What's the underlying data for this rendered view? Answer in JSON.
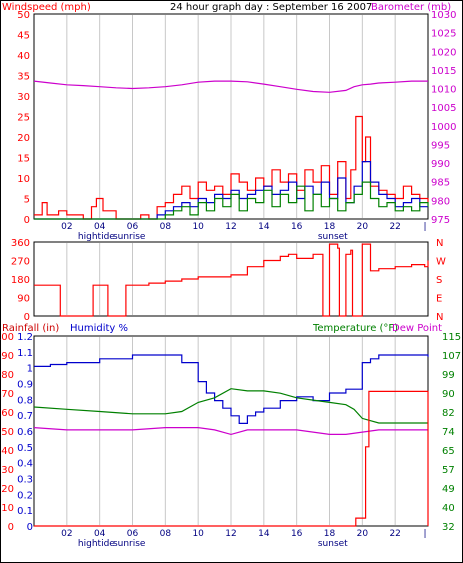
{
  "top_title": "24 hour graph day : September 16 2007",
  "colors": {
    "red": "#ff0000",
    "magenta": "#cc00cc",
    "blue": "#0000cc",
    "green": "#008000",
    "grid": "#c8c8c8",
    "axis": "#000000"
  },
  "x_ticks": [
    "02",
    "04",
    "06",
    "08",
    "10",
    "12",
    "14",
    "16",
    "18",
    "20",
    "22",
    "|"
  ],
  "x_events_top": [
    {
      "text": "hightide",
      "hour": 3.8
    },
    {
      "text": "sunrise",
      "hour": 5.8
    },
    {
      "text": "sunset",
      "hour": 18.2
    }
  ],
  "x_events_bottom": [
    {
      "text": "hightide",
      "hour": 3.8
    },
    {
      "text": "sunrise",
      "hour": 5.8
    },
    {
      "text": "sunset",
      "hour": 18.2
    }
  ],
  "chart_data": [
    {
      "type": "line",
      "title": "24 hour graph day : September 16 2007",
      "left_label": "Windspeed (mph)",
      "right_label": "Barometer (mb)",
      "left_ticks": [
        "50",
        "45",
        "40",
        "35",
        "30",
        "25",
        "20",
        "15",
        "10",
        "5",
        "0"
      ],
      "right_ticks": [
        "1030",
        "1025",
        "1020",
        "1015",
        "1010",
        "1005",
        "1000",
        "995",
        "990",
        "985",
        "980",
        "975"
      ],
      "x_range_hours": [
        0,
        24
      ],
      "left_range": [
        0,
        50
      ],
      "right_range": [
        975,
        1030
      ],
      "series": [
        {
          "name": "Barometer",
          "axis": "right",
          "color": "#cc00cc",
          "x": [
            0,
            1,
            2,
            3,
            4,
            5,
            6,
            7,
            8,
            9,
            10,
            11,
            12,
            13,
            14,
            15,
            16,
            17,
            18,
            19,
            19.5,
            20,
            20.5,
            21,
            22,
            23,
            24
          ],
          "y": [
            1012,
            1011.5,
            1011,
            1010.8,
            1010.5,
            1010.2,
            1010,
            1010.2,
            1010.5,
            1011,
            1011.7,
            1012,
            1012,
            1011.8,
            1011.2,
            1010.5,
            1009.8,
            1009.2,
            1009,
            1009.5,
            1010.5,
            1011,
            1011.2,
            1011.5,
            1011.7,
            1012,
            1012
          ]
        },
        {
          "name": "Gust",
          "axis": "left",
          "color": "#ff0000",
          "x": [
            0,
            0.5,
            0.8,
            1.5,
            2,
            3,
            3.5,
            3.8,
            4.2,
            5,
            6,
            6.5,
            7,
            7.5,
            8,
            8.5,
            9,
            9.5,
            10,
            10.5,
            11,
            11.5,
            12,
            12.5,
            13,
            13.5,
            14,
            14.5,
            15,
            15.5,
            16,
            16.5,
            17,
            17.5,
            18,
            18.5,
            19,
            19.3,
            19.6,
            20,
            20.2,
            20.5,
            21,
            21.5,
            22,
            22.5,
            23,
            23.5,
            24
          ],
          "y": [
            1,
            4,
            1,
            2,
            1,
            0,
            3,
            5,
            2,
            0,
            0,
            1,
            0,
            3,
            4,
            6,
            8,
            5,
            9,
            7,
            8,
            6,
            11,
            9,
            7,
            10,
            8,
            12,
            9,
            11,
            7,
            12,
            9,
            13,
            6,
            14,
            5,
            12,
            25,
            14,
            20,
            8,
            7,
            6,
            5,
            8,
            6,
            5,
            4
          ]
        },
        {
          "name": "Wind",
          "axis": "left",
          "color": "#0000cc",
          "x": [
            0,
            1,
            2,
            3,
            4,
            5,
            6,
            7,
            7.5,
            8,
            8.5,
            9,
            9.5,
            10,
            10.5,
            11,
            11.5,
            12,
            12.5,
            13,
            13.5,
            14,
            14.5,
            15,
            15.5,
            16,
            16.5,
            17,
            17.5,
            18,
            18.5,
            19,
            19.5,
            20,
            20.5,
            21,
            21.5,
            22,
            22.5,
            23,
            23.5,
            24
          ],
          "y": [
            0,
            0,
            0,
            0,
            0,
            0,
            0,
            0,
            1,
            2,
            3,
            4,
            3,
            5,
            4,
            6,
            5,
            7,
            5,
            6,
            7,
            8,
            6,
            7,
            9,
            5,
            8,
            6,
            9,
            5,
            10,
            4,
            8,
            14,
            9,
            6,
            5,
            3,
            4,
            5,
            3,
            3
          ]
        },
        {
          "name": "Avg wind",
          "axis": "left",
          "color": "#008000",
          "x": [
            0,
            1,
            2,
            3,
            4,
            5,
            6,
            7,
            7.5,
            8,
            8.5,
            9,
            9.5,
            10,
            10.5,
            11,
            11.5,
            12,
            12.5,
            13,
            13.5,
            14,
            14.5,
            15,
            15.5,
            16,
            16.5,
            17,
            17.5,
            18,
            18.5,
            19,
            19.5,
            20,
            20.5,
            21,
            21.5,
            22,
            22.5,
            23,
            23.5,
            24
          ],
          "y": [
            0,
            0,
            0,
            0,
            0,
            0,
            0,
            0,
            0,
            1,
            2,
            3,
            1,
            4,
            2,
            5,
            3,
            6,
            2,
            5,
            4,
            7,
            3,
            6,
            4,
            8,
            2,
            6,
            3,
            5,
            2,
            4,
            6,
            9,
            5,
            3,
            4,
            2,
            3,
            2,
            4,
            3
          ]
        }
      ]
    },
    {
      "type": "line",
      "title": "",
      "left_ticks": [
        "360",
        "270",
        "180",
        "90",
        "0"
      ],
      "right_ticks": [
        "N",
        "W",
        "S",
        "E",
        "N"
      ],
      "x_range_hours": [
        0,
        24
      ],
      "left_range": [
        0,
        360
      ],
      "series": [
        {
          "name": "Wind direction",
          "axis": "left",
          "color": "#ff0000",
          "x": [
            0,
            1.5,
            1.6,
            3.5,
            3.6,
            4.4,
            4.5,
            5.5,
            5.6,
            6,
            7,
            8,
            9,
            10,
            11,
            12,
            13,
            14,
            15,
            15.5,
            16,
            17,
            17.5,
            17.6,
            18,
            18.5,
            18.6,
            19,
            19.3,
            19.4,
            20,
            20.5,
            21,
            22,
            23,
            23.8,
            24
          ],
          "y": [
            150,
            150,
            0,
            0,
            150,
            150,
            0,
            0,
            150,
            150,
            160,
            170,
            180,
            190,
            190,
            200,
            240,
            270,
            290,
            300,
            280,
            300,
            300,
            0,
            350,
            330,
            0,
            300,
            320,
            0,
            350,
            220,
            230,
            240,
            250,
            240,
            270
          ]
        }
      ]
    },
    {
      "type": "line",
      "title": "",
      "left_label_1": "Rainfall (in)",
      "left_label_2": "Humidity %",
      "right_label_1": "Temperature (°F)",
      "right_label_2": "Dew Point",
      "rain_ticks": [
        "1.2",
        "1.1",
        "1",
        "0.9",
        "0.8",
        "0.7",
        "0.6",
        "0.5",
        "0.4",
        "0.3",
        "0.2",
        "0.1",
        "0"
      ],
      "humidity_ticks": [
        "100",
        "90",
        "80",
        "70",
        "60",
        "50",
        "40",
        "30",
        "20",
        "10",
        "0"
      ],
      "temp_ticks": [
        "115",
        "107",
        "99",
        "90",
        "82",
        "74",
        "65",
        "57",
        "49",
        "40",
        "32"
      ],
      "x_range_hours": [
        0,
        24
      ],
      "rain_range": [
        0,
        1.2
      ],
      "humidity_range": [
        0,
        100
      ],
      "temp_range": [
        32,
        115
      ],
      "series": [
        {
          "name": "Humidity",
          "axis": "humidity",
          "color": "#0000cc",
          "x": [
            0,
            1,
            2,
            3,
            4,
            5,
            6,
            7,
            8,
            9,
            10,
            10.5,
            11,
            11.5,
            12,
            12.5,
            13,
            13.5,
            14,
            15,
            16,
            17,
            18,
            19,
            19.5,
            20,
            20.5,
            21,
            22,
            23,
            24
          ],
          "y": [
            84,
            85,
            86,
            86,
            88,
            88,
            90,
            90,
            90,
            86,
            76,
            70,
            66,
            62,
            58,
            54,
            58,
            60,
            62,
            66,
            68,
            66,
            70,
            72,
            72,
            86,
            88,
            90,
            90,
            90,
            89
          ]
        },
        {
          "name": "Temperature",
          "axis": "temp",
          "color": "#008000",
          "x": [
            0,
            2,
            4,
            6,
            8,
            9,
            10,
            11,
            12,
            13,
            14,
            15,
            16,
            17,
            18,
            19,
            19.5,
            20,
            21,
            22,
            23,
            24
          ],
          "y": [
            84,
            83,
            82,
            81,
            81,
            82,
            86,
            88,
            92,
            91,
            91,
            90,
            88,
            87,
            86,
            85,
            83,
            79,
            77,
            77,
            77,
            77
          ]
        },
        {
          "name": "Dew Point",
          "axis": "temp",
          "color": "#cc00cc",
          "x": [
            0,
            2,
            4,
            6,
            8,
            10,
            11,
            12,
            13,
            14,
            16,
            18,
            19,
            20,
            21,
            22,
            23,
            24
          ],
          "y": [
            75,
            74,
            74,
            74,
            75,
            75,
            74,
            72,
            74,
            74,
            74,
            72,
            72,
            73,
            74,
            74,
            74,
            74
          ]
        },
        {
          "name": "Rainfall",
          "axis": "rain",
          "color": "#ff0000",
          "x": [
            0,
            19.5,
            19.6,
            20.2,
            20.4,
            24,
            24
          ],
          "y": [
            0,
            0,
            0.05,
            0.5,
            0.85,
            0.85,
            0
          ]
        }
      ]
    }
  ]
}
